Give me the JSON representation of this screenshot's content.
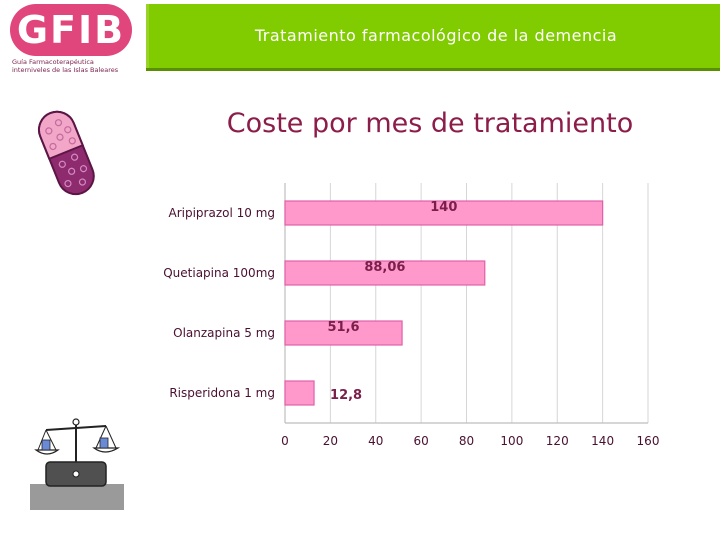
{
  "header": {
    "title": "Tratamiento farmacológico de la demencia"
  },
  "logo": {
    "text": "GFIB",
    "tagline_1": "Guía Farmacoterapéutica",
    "tagline_2": "interniveles de las Islas Baleares"
  },
  "slide": {
    "title": "Coste por mes de tratamiento"
  },
  "colors": {
    "header": "#80cc00",
    "bar_fill": "#ff99cc",
    "bar_stroke": "#e060a8",
    "title": "#8c1c4a",
    "value_label": "#7a1f4a"
  },
  "icons": [
    "pill-icon",
    "scale-icon"
  ],
  "chart_data": {
    "type": "bar",
    "orientation": "horizontal",
    "categories": [
      "Aripiprazol 10 mg",
      "Quetiapina 100mg",
      "Olanzapina 5 mg",
      "Risperidona 1 mg"
    ],
    "values": [
      140,
      88.06,
      51.6,
      12.8
    ],
    "value_labels": [
      "140",
      "88,06",
      "51,6",
      "12,8"
    ],
    "xlim": [
      0,
      160
    ],
    "xticks": [
      "0",
      "20",
      "40",
      "60",
      "80",
      "100",
      "120",
      "140",
      "160"
    ],
    "grid": true,
    "title": "",
    "xlabel": "",
    "ylabel": ""
  }
}
